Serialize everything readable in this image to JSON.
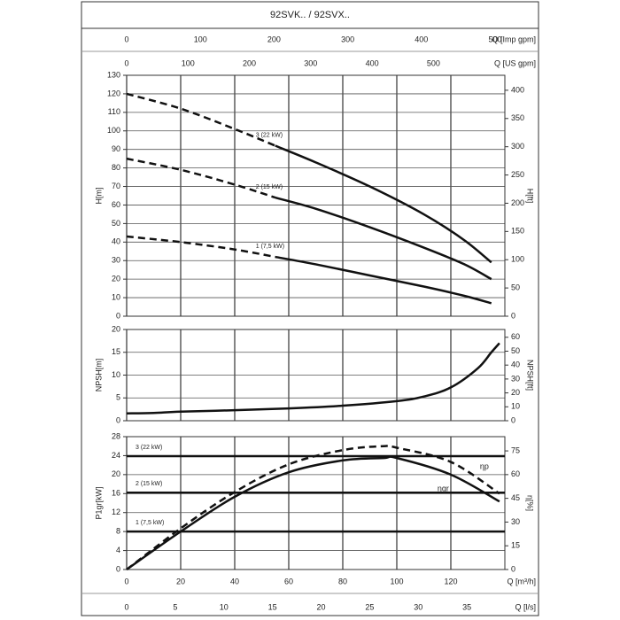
{
  "title": "92SVK.. / 92SVX..",
  "x_axes": [
    {
      "label": "Q [Imp gpm]",
      "xlim": [
        0,
        513.2
      ],
      "xticks": [
        0,
        100,
        200,
        300,
        400,
        500
      ]
    },
    {
      "label": "Q [US gpm]",
      "xlim": [
        0,
        616.4
      ],
      "xticks": [
        0,
        100,
        200,
        300,
        400,
        500
      ]
    },
    {
      "label": "Q [m³/h]",
      "xlim": [
        0,
        140
      ],
      "xticks": [
        0,
        20,
        40,
        60,
        80,
        100,
        120
      ]
    },
    {
      "label": "Q [l/s]",
      "xlim": [
        0,
        38.9
      ],
      "xticks": [
        0,
        5,
        10,
        15,
        20,
        25,
        30,
        35
      ]
    }
  ],
  "chart_data": [
    {
      "type": "line",
      "ylabel": "H[m]",
      "y2label": "H[ft]",
      "ylim": [
        0,
        130
      ],
      "yticks": [
        0,
        10,
        20,
        30,
        40,
        50,
        60,
        70,
        80,
        90,
        100,
        110,
        120,
        130
      ],
      "y2lim": [
        0,
        426.5
      ],
      "y2ticks": [
        0,
        50,
        100,
        150,
        200,
        250,
        300,
        350,
        400
      ],
      "grid": true,
      "x": [
        0,
        20,
        40,
        55,
        70,
        90,
        110,
        125,
        135
      ],
      "series": [
        {
          "color": "#111111",
          "dash": true,
          "values": [
            120,
            112,
            101,
            92,
            null,
            null,
            null,
            null,
            null
          ]
        },
        {
          "label": "3 (22 kW)",
          "color": "#111111",
          "dash": false,
          "values": [
            null,
            null,
            null,
            92,
            83,
            70,
            55,
            41,
            29
          ]
        },
        {
          "color": "#111111",
          "dash": true,
          "values": [
            85,
            79,
            71,
            64,
            null,
            null,
            null,
            null,
            null
          ]
        },
        {
          "label": "2 (15 kW)",
          "color": "#111111",
          "dash": false,
          "values": [
            null,
            null,
            null,
            64,
            58,
            48,
            37,
            28,
            20
          ]
        },
        {
          "color": "#111111",
          "dash": true,
          "values": [
            43,
            40,
            36,
            32,
            null,
            null,
            null,
            null,
            null
          ]
        },
        {
          "label": "1 (7,5 kW)",
          "color": "#111111",
          "dash": false,
          "values": [
            null,
            null,
            null,
            32,
            28,
            22,
            16,
            11,
            7
          ]
        }
      ]
    },
    {
      "type": "line",
      "ylabel": "NPSH[m]",
      "y2label": "NPSH[ft]",
      "ylim": [
        0,
        20
      ],
      "yticks": [
        0,
        5,
        10,
        15,
        20
      ],
      "y2lim": [
        0,
        65.6
      ],
      "y2ticks": [
        0,
        10,
        20,
        30,
        40,
        50,
        60
      ],
      "grid": true,
      "x": [
        0,
        10,
        20,
        40,
        60,
        80,
        100,
        110,
        120,
        130,
        135,
        138
      ],
      "series": [
        {
          "color": "#111111",
          "dash": false,
          "values": [
            1.6,
            1.7,
            2.0,
            2.3,
            2.7,
            3.3,
            4.3,
            5.3,
            7.3,
            11.5,
            15,
            17
          ]
        }
      ]
    },
    {
      "type": "line",
      "ylabel": "P1gr[kW]",
      "y2label": "η[%]",
      "ylim": [
        0,
        28
      ],
      "yticks": [
        0,
        4,
        8,
        12,
        16,
        20,
        24,
        28
      ],
      "y2lim": [
        0,
        84
      ],
      "y2ticks": [
        0,
        15,
        30,
        45,
        60,
        75
      ],
      "grid": true,
      "levels": [
        {
          "label": "3 (22 kW)",
          "value": 23.9
        },
        {
          "label": "2 (15 kW)",
          "value": 16.2
        },
        {
          "label": "1 (7,5 kW)",
          "value": 8.0
        }
      ],
      "x": [
        0,
        20,
        40,
        60,
        80,
        95,
        100,
        120,
        138
      ],
      "series": [
        {
          "label": "ηgr",
          "axis": "y2",
          "color": "#111111",
          "dash": false,
          "values": [
            0,
            24,
            46,
            61.5,
            69,
            70.5,
            70.5,
            60,
            43
          ]
        },
        {
          "label": "ηp",
          "axis": "y2",
          "color": "#111111",
          "dash": true,
          "values": [
            0,
            26,
            49,
            66.5,
            75.5,
            78,
            77,
            68,
            48
          ]
        }
      ]
    }
  ]
}
